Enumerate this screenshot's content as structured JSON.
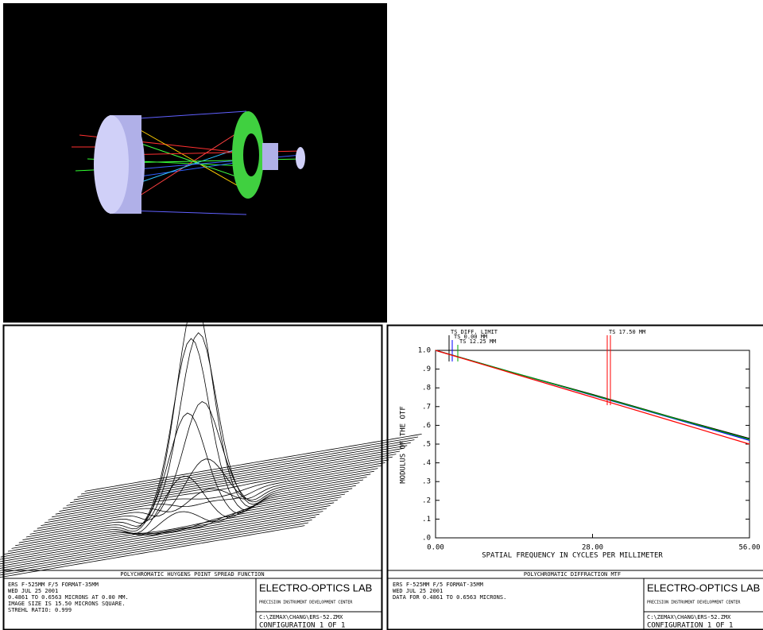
{
  "psf_panel": {
    "title": "POLYCHROMATIC HUYGENS POINT SPREAD FUNCTION",
    "info": [
      "ERS F-525MM F/5 FORMAT-35MM",
      "WED JUL 25 2001",
      "0.4861 TO 0.6563 MICRONS AT 0.00 MM.",
      "IMAGE SIZE IS 15.50 MICRONS SQUARE.",
      "STREHL RATIO: 0.999"
    ],
    "lab": "ELECTRO-OPTICS LAB",
    "center": "PRECISION INSTRUMENT DEVELOPMENT CENTER",
    "file": "C:\\ZEMAX\\CHANG\\ERS-52.ZMX",
    "config": "CONFIGURATION 1 OF 1"
  },
  "mtf_panel": {
    "info": [
      "ERS F-525MM F/5 FORMAT-35MM",
      "WED JUL 25 2001",
      "DATA FOR 0.4861 TO 0.6563 MICRONS."
    ],
    "lab": "ELECTRO-OPTICS LAB",
    "center": "PRECISION INSTRUMENT DEVELOPMENT CENTER",
    "file": "C:\\ZEMAX\\CHANG\\ERS-52.ZMX",
    "config": "CONFIGURATION 1 OF 1"
  },
  "chart_data": {
    "type": "line",
    "title": "POLYCHROMATIC DIFFRACTION MTF",
    "xlabel": "SPATIAL FREQUENCY IN CYCLES PER MILLIMETER",
    "ylabel": "MODULUS OF THE OTF",
    "x": [
      0,
      14,
      28,
      42,
      56
    ],
    "series": [
      {
        "name": "TS DIFF. LIMIT",
        "color": "#000000",
        "values": [
          1.0,
          0.88,
          0.765,
          0.645,
          0.53
        ]
      },
      {
        "name": "TS 0.00 MM",
        "color": "#0000ff",
        "values": [
          1.0,
          0.88,
          0.76,
          0.64,
          0.52
        ]
      },
      {
        "name": "TS 12.25 MM",
        "color": "#00aa00",
        "values": [
          1.0,
          0.88,
          0.762,
          0.643,
          0.525
        ]
      },
      {
        "name": "TS 17.50 MM",
        "color": "#ff0000",
        "values": [
          1.0,
          0.875,
          0.75,
          0.625,
          0.5
        ]
      }
    ],
    "xlim": [
      0,
      56
    ],
    "ylim": [
      0,
      1
    ],
    "xticks": [
      {
        "value": 0,
        "label": "0.00"
      },
      {
        "value": 28,
        "label": "28.00"
      },
      {
        "value": 56,
        "label": "56.00"
      }
    ],
    "yticks": [
      {
        "value": 0,
        "label": ".0"
      },
      {
        "value": 0.1,
        "label": ".1"
      },
      {
        "value": 0.2,
        "label": ".2"
      },
      {
        "value": 0.3,
        "label": ".3"
      },
      {
        "value": 0.4,
        "label": ".4"
      },
      {
        "value": 0.5,
        "label": ".5"
      },
      {
        "value": 0.6,
        "label": ".6"
      },
      {
        "value": 0.7,
        "label": ".7"
      },
      {
        "value": 0.8,
        "label": ".8"
      },
      {
        "value": 0.9,
        "label": ".9"
      },
      {
        "value": 1,
        "label": "1.0"
      }
    ]
  }
}
